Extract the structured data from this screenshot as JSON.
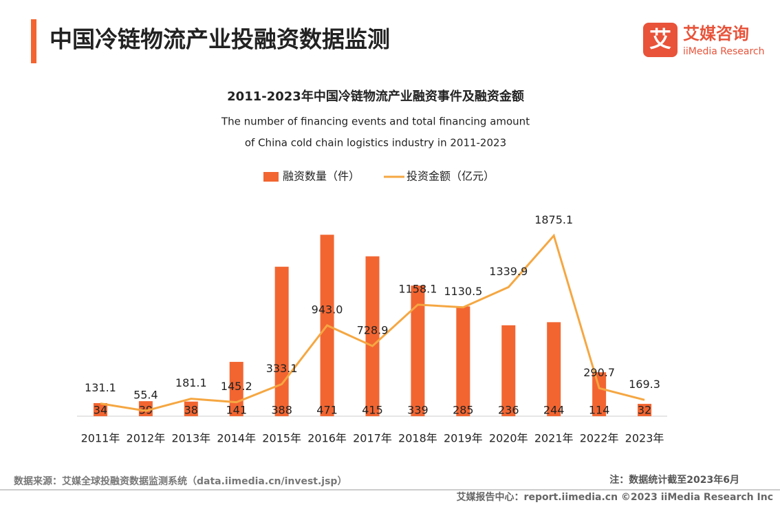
{
  "header": {
    "title": "中国冷链物流产业投融资数据监测",
    "logo_mark": "艾",
    "logo_name": "艾媒咨询",
    "logo_sub": "iiMedia Research"
  },
  "chart_data": {
    "type": "bar-line",
    "title": "2011-2023年中国冷链物流产业融资事件及融资金额",
    "subtitle": [
      "The number of financing events and total financing amount",
      "of China cold chain logistics industry in 2011-2023"
    ],
    "categories": [
      "2011年",
      "2012年",
      "2013年",
      "2014年",
      "2015年",
      "2016年",
      "2017年",
      "2018年",
      "2019年",
      "2020年",
      "2021年",
      "2022年",
      "2023年"
    ],
    "series": [
      {
        "name": "融资数量（件）",
        "type": "bar",
        "color": "#f26531",
        "values": [
          34,
          39,
          38,
          141,
          388,
          471,
          415,
          339,
          285,
          236,
          244,
          114,
          32
        ]
      },
      {
        "name": "投资金额（亿元）",
        "type": "line",
        "axis": "y2",
        "color": "#f5a742",
        "values": [
          131.1,
          55.4,
          181.1,
          145.2,
          333.1,
          943.0,
          728.9,
          1158.1,
          1130.5,
          1339.9,
          1875.1,
          290.7,
          169.3
        ],
        "value_labels": [
          "131.1",
          "55.4",
          "181.1",
          "145.2",
          "333.1",
          "943.0",
          "728.9",
          "1158.1",
          "1130.5",
          "1339.9",
          "1875.1",
          "290.7",
          "169.3"
        ]
      }
    ],
    "ylim": [
      0,
      500
    ],
    "y2lim": [
      0,
      2000
    ],
    "legend": "top"
  },
  "footer": {
    "source": "数据来源：艾媒全球投融资数据监测系统（data.iimedia.cn/invest.jsp）",
    "note": "注：数据统计截至2023年6月",
    "copyright": "艾媒报告中心：report.iimedia.cn  ©2023  iiMedia Research  Inc"
  }
}
